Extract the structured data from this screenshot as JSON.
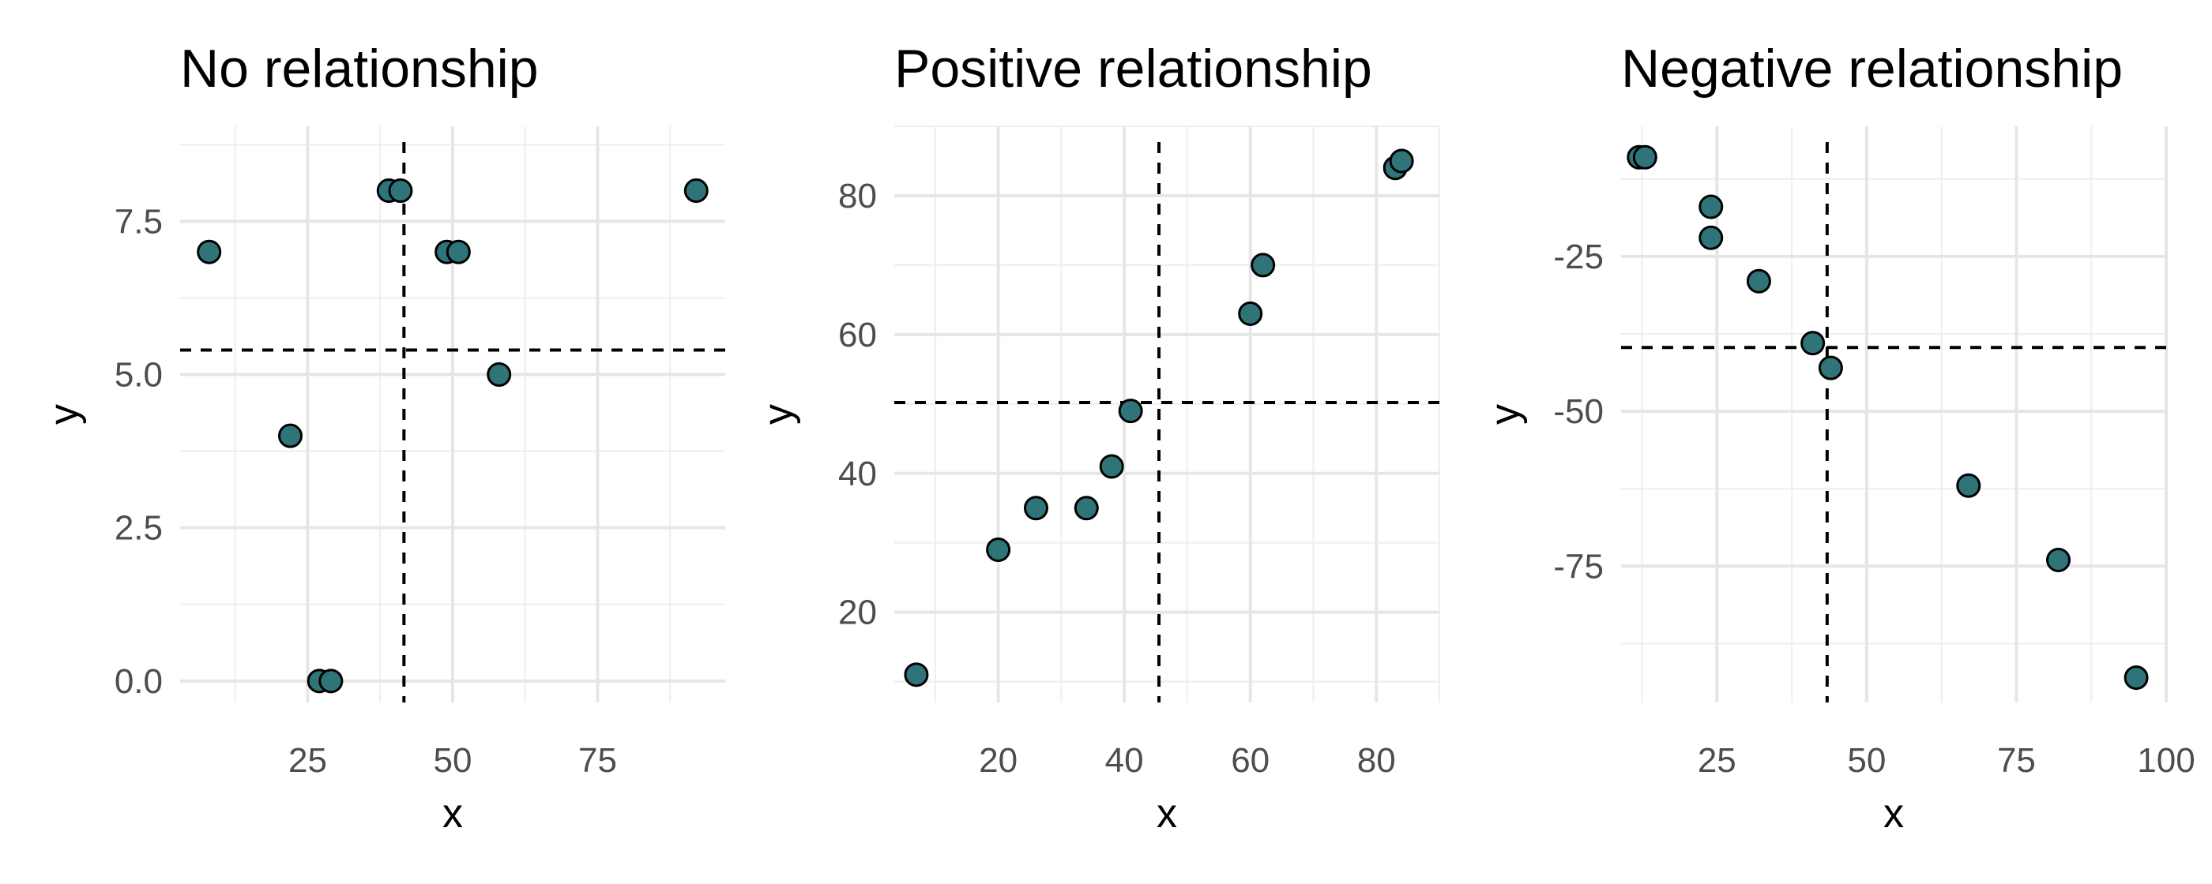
{
  "colors": {
    "point_fill": "#2e7478",
    "point_stroke": "#000000",
    "reference_line": "#000000",
    "grid": "#e6e6e6"
  },
  "chart_data": [
    {
      "type": "scatter",
      "title": "No relationship",
      "xlabel": "x",
      "ylabel": "y",
      "xlim": [
        3,
        97
      ],
      "ylim": [
        -0.35,
        9.05
      ],
      "x_ticks": [
        25,
        50,
        75
      ],
      "y_ticks": [
        0.0,
        2.5,
        5.0,
        7.5
      ],
      "x_tick_labels": [
        "25",
        "50",
        "75"
      ],
      "y_tick_labels": [
        "0.0",
        "2.5",
        "5.0",
        "7.5"
      ],
      "grid": true,
      "legend": "none",
      "points": [
        {
          "x": 8,
          "y": 7
        },
        {
          "x": 22,
          "y": 4
        },
        {
          "x": 27,
          "y": 0
        },
        {
          "x": 29,
          "y": 0
        },
        {
          "x": 39,
          "y": 8
        },
        {
          "x": 41,
          "y": 8
        },
        {
          "x": 49,
          "y": 7
        },
        {
          "x": 51,
          "y": 7
        },
        {
          "x": 58,
          "y": 5
        },
        {
          "x": 92,
          "y": 8
        }
      ],
      "mean_x": 41.6,
      "mean_y": 5.4
    },
    {
      "type": "scatter",
      "title": "Positive relationship",
      "xlabel": "x",
      "ylabel": "y",
      "xlim": [
        3.5,
        90
      ],
      "ylim": [
        7,
        90
      ],
      "x_ticks": [
        20,
        40,
        60,
        80
      ],
      "y_ticks": [
        20,
        40,
        60,
        80
      ],
      "x_tick_labels": [
        "20",
        "40",
        "60",
        "80"
      ],
      "y_tick_labels": [
        "20",
        "40",
        "60",
        "80"
      ],
      "grid": true,
      "legend": "none",
      "points": [
        {
          "x": 7,
          "y": 11
        },
        {
          "x": 20,
          "y": 29
        },
        {
          "x": 26,
          "y": 35
        },
        {
          "x": 34,
          "y": 35
        },
        {
          "x": 38,
          "y": 41
        },
        {
          "x": 41,
          "y": 49
        },
        {
          "x": 60,
          "y": 63
        },
        {
          "x": 62,
          "y": 70
        },
        {
          "x": 83,
          "y": 84
        },
        {
          "x": 84,
          "y": 85
        }
      ],
      "mean_x": 45.5,
      "mean_y": 50.2
    },
    {
      "type": "scatter",
      "title": "Negative relationship",
      "xlabel": "x",
      "ylabel": "y",
      "xlim": [
        9,
        100
      ],
      "ylim": [
        -97,
        -4
      ],
      "x_ticks": [
        25,
        50,
        75,
        100
      ],
      "y_ticks": [
        -75,
        -50,
        -25
      ],
      "x_tick_labels": [
        "25",
        "50",
        "75",
        "100"
      ],
      "y_tick_labels": [
        "-75",
        "-50",
        "-25"
      ],
      "grid": true,
      "legend": "none",
      "points": [
        {
          "x": 12,
          "y": -9
        },
        {
          "x": 13,
          "y": -9
        },
        {
          "x": 24,
          "y": -17
        },
        {
          "x": 24,
          "y": -22
        },
        {
          "x": 32,
          "y": -29
        },
        {
          "x": 41,
          "y": -39
        },
        {
          "x": 44,
          "y": -43
        },
        {
          "x": 67,
          "y": -62
        },
        {
          "x": 82,
          "y": -74
        },
        {
          "x": 95,
          "y": -93
        }
      ],
      "mean_x": 43.4,
      "mean_y": -39.7
    }
  ]
}
